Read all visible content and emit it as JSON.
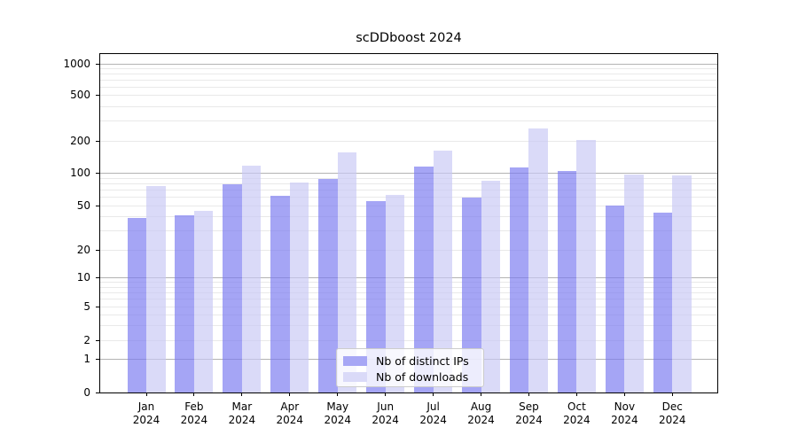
{
  "chart_data": {
    "type": "bar",
    "title": "scDDboost 2024",
    "year_label": "2024",
    "months": [
      "Jan",
      "Feb",
      "Mar",
      "Apr",
      "May",
      "Jun",
      "Jul",
      "Aug",
      "Sep",
      "Oct",
      "Nov",
      "Dec"
    ],
    "series": [
      {
        "name": "Nb of distinct IPs",
        "bar_color": "rgba(121,121,240,0.67)",
        "legend_color": "#a7a7f5",
        "values": [
          39,
          41,
          78,
          61,
          87,
          55,
          115,
          59,
          112,
          103,
          50,
          43
        ]
      },
      {
        "name": "Nb of downloads",
        "bar_color": "rgba(200,200,245,0.67)",
        "legend_color": "#dadaf8",
        "values": [
          76,
          45,
          116,
          81,
          155,
          63,
          161,
          84,
          255,
          205,
          96,
          94
        ]
      }
    ],
    "y_axis": {
      "scale": "symlog",
      "range": [
        0,
        1270
      ],
      "tick_values": [
        0,
        1,
        2,
        5,
        10,
        20,
        50,
        100,
        200,
        500,
        1000
      ],
      "scale_anchors": [
        [
          0,
          0.0
        ],
        [
          1,
          0.0992
        ],
        [
          2,
          0.154
        ],
        [
          5,
          0.2533
        ],
        [
          10,
          0.3394
        ],
        [
          20,
          0.4204
        ],
        [
          50,
          0.5509
        ],
        [
          100,
          0.6475
        ],
        [
          200,
          0.7415
        ],
        [
          500,
          0.8773
        ],
        [
          1000,
          0.9687
        ]
      ]
    },
    "grid": {
      "major_values": [
        1,
        10,
        100,
        1000
      ],
      "minor_values": [
        2,
        3,
        4,
        5,
        6,
        7,
        8,
        9,
        20,
        30,
        40,
        50,
        60,
        70,
        80,
        90,
        200,
        300,
        400,
        500,
        600,
        700,
        800,
        900
      ],
      "major_color": "#b3b3b3",
      "minor_color": "#e9e9e9"
    },
    "legend": {
      "position": "bottom-center"
    }
  }
}
